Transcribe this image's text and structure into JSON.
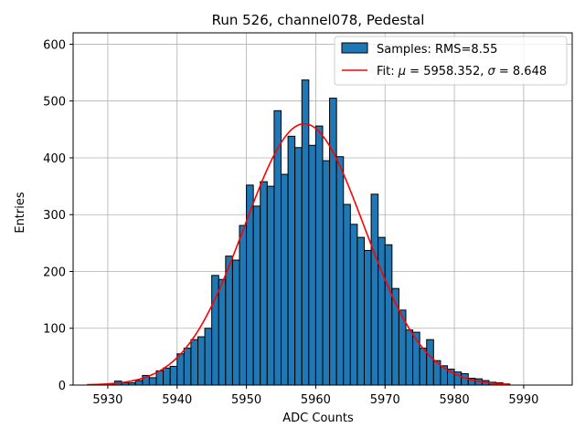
{
  "chart_data": {
    "type": "bar",
    "title": "Run 526, channel078, Pedestal",
    "xlabel": "ADC Counts",
    "ylabel": "Entries",
    "xlim": [
      5925,
      5997
    ],
    "ylim": [
      0,
      620
    ],
    "xticks": [
      5930,
      5940,
      5950,
      5960,
      5970,
      5980,
      5990
    ],
    "yticks": [
      0,
      100,
      200,
      300,
      400,
      500,
      600
    ],
    "grid": true,
    "legend_position": "top-right",
    "bin_width": 1,
    "bins": {
      "x": [
        5929,
        5930,
        5931,
        5932,
        5933,
        5934,
        5935,
        5936,
        5937,
        5938,
        5939,
        5940,
        5941,
        5942,
        5943,
        5944,
        5945,
        5946,
        5947,
        5948,
        5949,
        5950,
        5951,
        5952,
        5953,
        5954,
        5955,
        5956,
        5957,
        5958,
        5959,
        5960,
        5961,
        5962,
        5963,
        5964,
        5965,
        5966,
        5967,
        5968,
        5969,
        5970,
        5971,
        5972,
        5973,
        5974,
        5975,
        5976,
        5977,
        5978,
        5979,
        5980,
        5981,
        5982,
        5983,
        5984,
        5985,
        5986,
        5987
      ],
      "values": [
        1,
        1,
        7,
        4,
        4,
        8,
        17,
        13,
        25,
        30,
        33,
        55,
        65,
        80,
        85,
        100,
        193,
        186,
        227,
        220,
        281,
        352,
        315,
        358,
        350,
        483,
        371,
        438,
        418,
        537,
        422,
        456,
        395,
        505,
        402,
        318,
        283,
        260,
        237,
        336,
        260,
        247,
        170,
        132,
        97,
        93,
        65,
        80,
        43,
        34,
        28,
        23,
        20,
        12,
        11,
        8,
        5,
        4,
        2
      ],
      "color": "#1f77b4",
      "edgecolor": "#000000",
      "legend": "Samples: RMS=8.55"
    },
    "fit": {
      "type": "gaussian",
      "mu": 5958.352,
      "sigma": 8.648,
      "amplitude": 460,
      "x_range": [
        5927,
        5988
      ],
      "color": "#ff0000",
      "legend": "Fit: μ = 5958.352, σ = 8.648"
    }
  }
}
